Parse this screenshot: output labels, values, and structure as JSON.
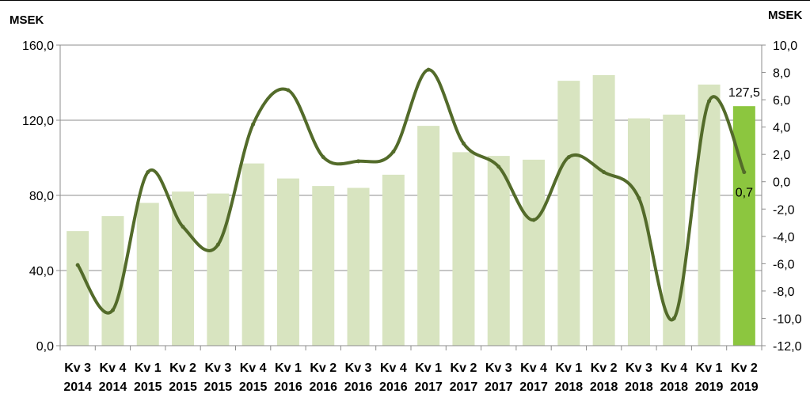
{
  "chart_data": {
    "type": "bar",
    "categories": [
      [
        "Kv 3",
        "2014"
      ],
      [
        "Kv 4",
        "2014"
      ],
      [
        "Kv 1",
        "2015"
      ],
      [
        "Kv 2",
        "2015"
      ],
      [
        "Kv 3",
        "2015"
      ],
      [
        "Kv 4",
        "2015"
      ],
      [
        "Kv 1",
        "2016"
      ],
      [
        "Kv 2",
        "2016"
      ],
      [
        "Kv 3",
        "2016"
      ],
      [
        "Kv 4",
        "2016"
      ],
      [
        "Kv 1",
        "2017"
      ],
      [
        "Kv 2",
        "2017"
      ],
      [
        "Kv 3",
        "2017"
      ],
      [
        "Kv 4",
        "2017"
      ],
      [
        "Kv 1",
        "2018"
      ],
      [
        "Kv 2",
        "2018"
      ],
      [
        "Kv 3",
        "2018"
      ],
      [
        "Kv 4",
        "2018"
      ],
      [
        "Kv 1",
        "2019"
      ],
      [
        "Kv 2",
        "2019"
      ]
    ],
    "series": [
      {
        "type": "bar",
        "axis": "left",
        "values": [
          61,
          69,
          76,
          82,
          81,
          97,
          89,
          85,
          84,
          91,
          117,
          103,
          101,
          99,
          141,
          144,
          121,
          123,
          139,
          127.5
        ],
        "color": "#d8e4c0",
        "highlight_color": "#8cc63f",
        "highlight_index": 19,
        "data_label": "127,5"
      },
      {
        "type": "line",
        "axis": "right",
        "smooth": true,
        "values": [
          -6.1,
          -9.4,
          0.7,
          -3.3,
          -4.6,
          4.2,
          6.7,
          1.8,
          1.5,
          2.2,
          8.2,
          2.8,
          1.1,
          -2.8,
          1.8,
          0.7,
          -1.2,
          -10.0,
          5.9,
          0.7
        ],
        "color": "#536b2a",
        "data_label": "0,7"
      }
    ],
    "y_left": {
      "unit": "MSEK",
      "ylim": [
        0,
        160
      ],
      "ticks": [
        "0,0",
        "40,0",
        "80,0",
        "120,0",
        "160,0"
      ]
    },
    "y_right": {
      "unit": "MSEK",
      "ylim": [
        -12,
        10
      ],
      "ticks": [
        "-12,0",
        "-10,0",
        "-8,0",
        "-6,0",
        "-4,0",
        "-2,0",
        "0,0",
        "2,0",
        "4,0",
        "6,0",
        "8,0",
        "10,0"
      ]
    },
    "grid": true,
    "legend": "none"
  }
}
